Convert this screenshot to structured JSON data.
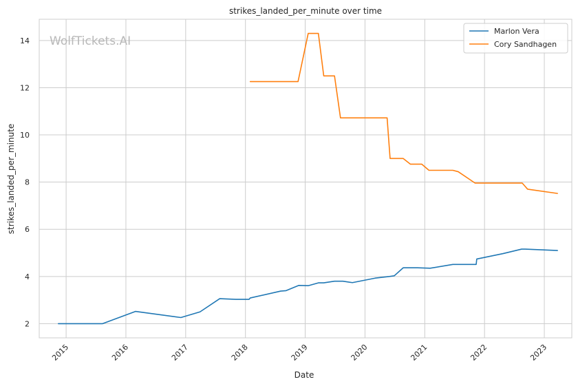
{
  "chart_data": {
    "type": "line",
    "title": "strikes_landed_per_minute over time",
    "xlabel": "Date",
    "ylabel": "strikes_landed_per_minute",
    "watermark": "WolfTickets.AI",
    "xlim": [
      2014.55,
      2023.46
    ],
    "ylim": [
      1.4,
      14.9
    ],
    "x_ticks": [
      {
        "value": 2015,
        "label": "2015"
      },
      {
        "value": 2016,
        "label": "2016"
      },
      {
        "value": 2017,
        "label": "2017"
      },
      {
        "value": 2018,
        "label": "2018"
      },
      {
        "value": 2019,
        "label": "2019"
      },
      {
        "value": 2020,
        "label": "2020"
      },
      {
        "value": 2021,
        "label": "2021"
      },
      {
        "value": 2022,
        "label": "2022"
      },
      {
        "value": 2023,
        "label": "2023"
      }
    ],
    "y_ticks": [
      {
        "value": 2,
        "label": "2"
      },
      {
        "value": 4,
        "label": "4"
      },
      {
        "value": 6,
        "label": "6"
      },
      {
        "value": 8,
        "label": "8"
      },
      {
        "value": 10,
        "label": "10"
      },
      {
        "value": 12,
        "label": "12"
      },
      {
        "value": 14,
        "label": "14"
      }
    ],
    "grid": true,
    "legend_position": "top-right",
    "series": [
      {
        "name": "Marlon Vera",
        "color": "#1f77b4",
        "x": [
          2014.87,
          2015.61,
          2016.16,
          2016.92,
          2017.24,
          2017.57,
          2017.84,
          2018.06,
          2018.08,
          2018.59,
          2018.68,
          2018.89,
          2019.05,
          2019.22,
          2019.31,
          2019.49,
          2019.63,
          2019.79,
          2020.17,
          2020.41,
          2020.49,
          2020.64,
          2020.88,
          2021.09,
          2021.47,
          2021.86,
          2021.87,
          2022.31,
          2022.62,
          2022.68,
          2023.22
        ],
        "y": [
          2.0,
          2.0,
          2.52,
          2.26,
          2.5,
          3.06,
          3.03,
          3.03,
          3.09,
          3.38,
          3.4,
          3.62,
          3.61,
          3.73,
          3.73,
          3.8,
          3.8,
          3.74,
          3.93,
          4.0,
          4.03,
          4.37,
          4.37,
          4.35,
          4.51,
          4.51,
          4.74,
          4.97,
          5.16,
          5.16,
          5.1
        ]
      },
      {
        "name": "Cory Sandhagen",
        "color": "#ff7f0e",
        "x": [
          2018.08,
          2018.88,
          2019.05,
          2019.22,
          2019.31,
          2019.49,
          2019.59,
          2020.37,
          2020.42,
          2020.64,
          2020.76,
          2020.95,
          2021.07,
          2021.47,
          2021.56,
          2021.84,
          2022.63,
          2022.72,
          2023.22
        ],
        "y": [
          12.26,
          12.26,
          14.3,
          14.3,
          12.5,
          12.5,
          10.72,
          10.72,
          9.0,
          9.0,
          8.76,
          8.76,
          8.5,
          8.5,
          8.44,
          7.96,
          7.96,
          7.7,
          7.52
        ]
      }
    ]
  }
}
